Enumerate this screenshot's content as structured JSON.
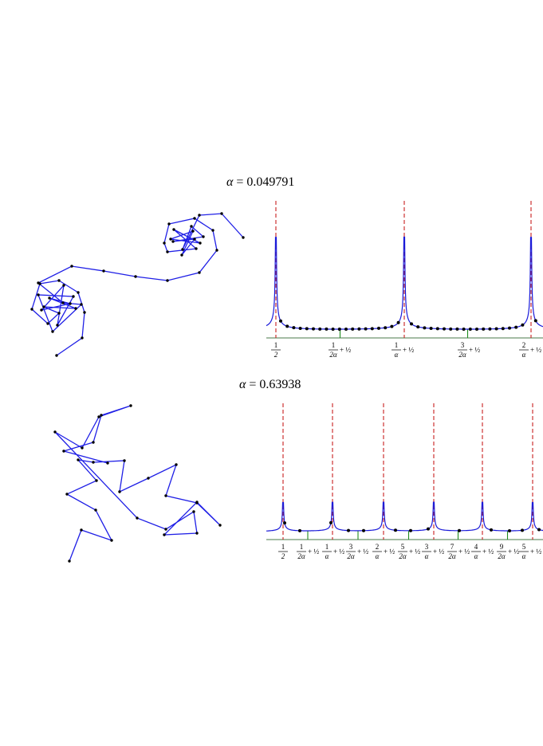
{
  "figure": {
    "panels": [
      {
        "title_symbol": "α",
        "title_value": "= 0.049791",
        "tick_labels": [
          {
            "num": "1",
            "den": "2",
            "prefix": "",
            "suffix": ""
          },
          {
            "num": "1",
            "den": "2α",
            "prefix": "",
            "suffix": "+ ½"
          },
          {
            "num": "1",
            "den": "α",
            "prefix": "",
            "suffix": "+ ½"
          },
          {
            "num": "3",
            "den": "2α",
            "prefix": "",
            "suffix": "+ ½"
          },
          {
            "num": "2",
            "den": "α",
            "prefix": "",
            "suffix": "+ ½"
          }
        ]
      },
      {
        "title_symbol": "α",
        "title_value": "= 0.63938",
        "tick_labels": [
          {
            "num": "1",
            "den": "2",
            "suffix": ""
          },
          {
            "num": "1",
            "den": "2α",
            "suffix": "+ ½"
          },
          {
            "num": "1",
            "den": "α",
            "suffix": "+ ½"
          },
          {
            "num": "3",
            "den": "2α",
            "suffix": "+ ½"
          },
          {
            "num": "2",
            "den": "α",
            "suffix": "+ ½"
          },
          {
            "num": "5",
            "den": "2α",
            "suffix": "+ ½"
          },
          {
            "num": "3",
            "den": "α",
            "suffix": "+ ½"
          },
          {
            "num": "7",
            "den": "2α",
            "suffix": "+ ½"
          },
          {
            "num": "4",
            "den": "α",
            "suffix": "+ ½"
          },
          {
            "num": "9",
            "den": "2α",
            "suffix": "+ ½"
          },
          {
            "num": "5",
            "den": "α",
            "suffix": "+ ½"
          }
        ]
      }
    ],
    "colors": {
      "walk": "#1f1fe6",
      "curve": "#1a1ad9",
      "asymptote": "#c81e1e",
      "minimum": "#1e8c1e",
      "axis": "#4a7a4a",
      "point": "#000000"
    }
  }
}
